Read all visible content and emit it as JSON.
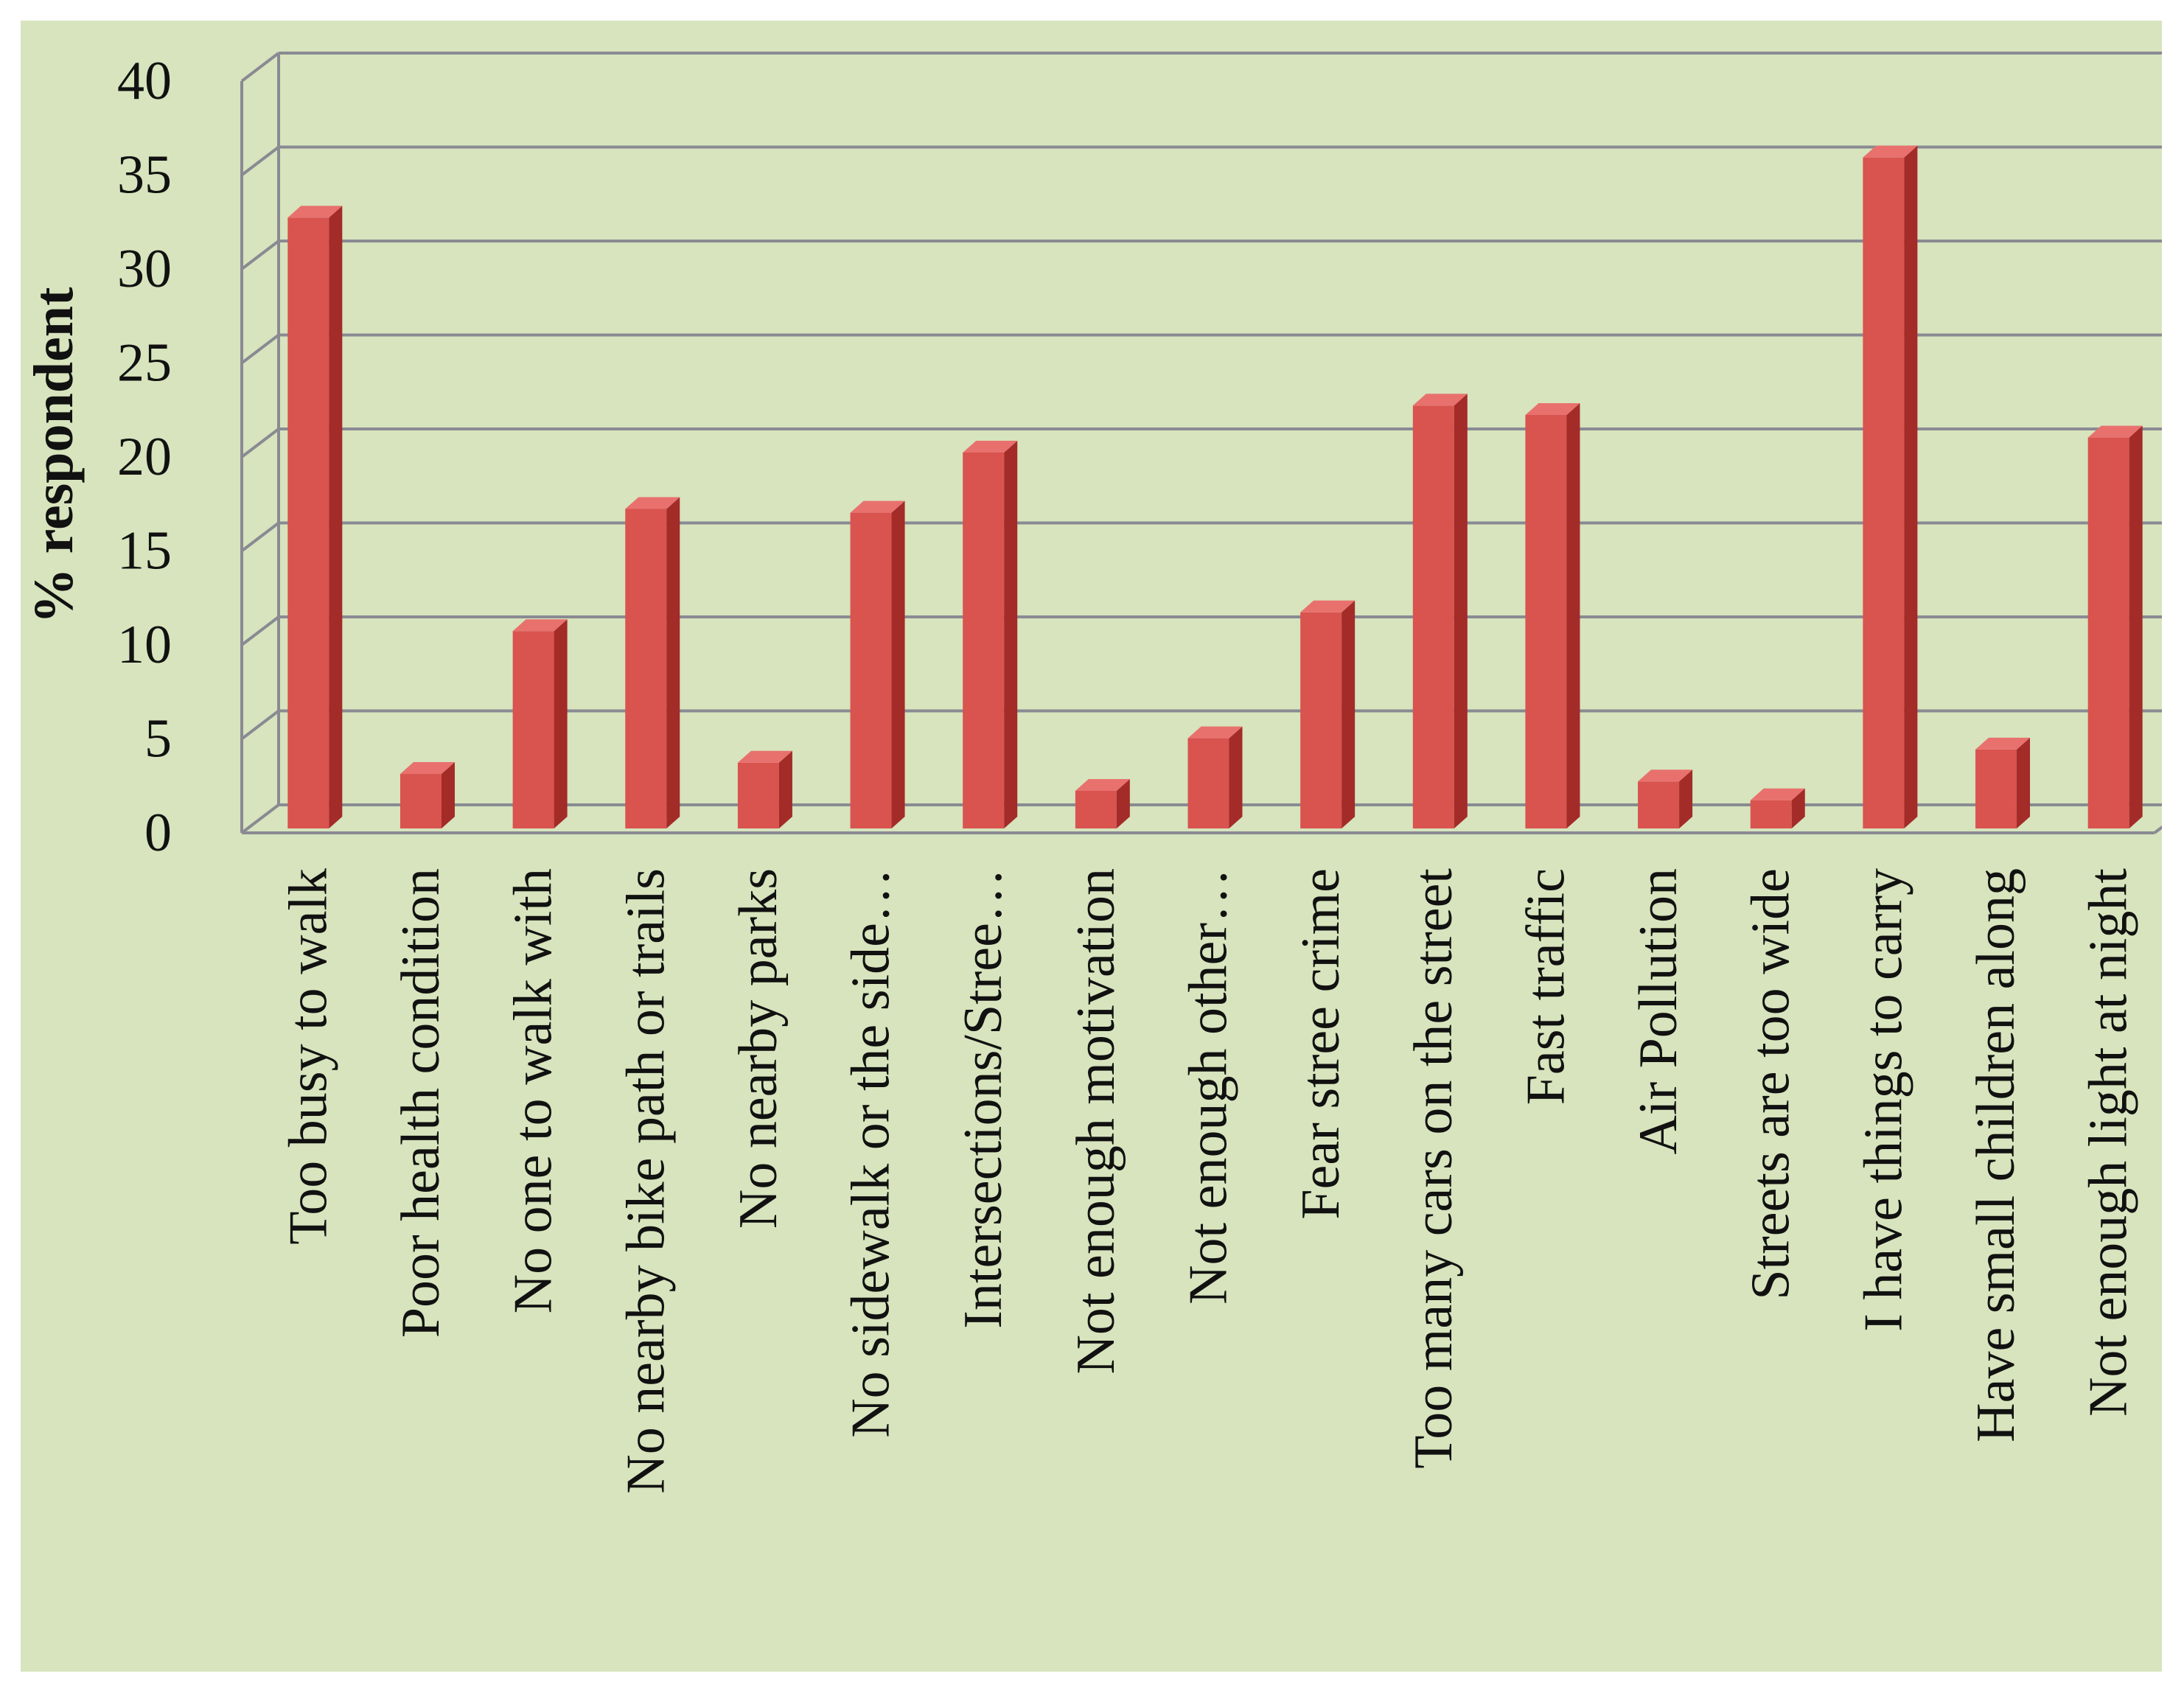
{
  "chart_data": {
    "type": "bar",
    "style": "3d-column",
    "title": "",
    "xlabel": "",
    "ylabel": "% respondent",
    "ylim": [
      0,
      40
    ],
    "yticks": [
      0,
      5,
      10,
      15,
      20,
      25,
      30,
      35,
      40
    ],
    "grid": true,
    "legend": "none",
    "categories": [
      "Too busy to walk",
      "Poor health condition",
      "No one to walk with",
      "No nearby bike path or trails",
      "No nearby parks",
      "No sidewalk or the side…",
      "Intersections/Stree…",
      "Not enough motivation",
      "Not enough other…",
      "Fear stree crime",
      "Too many cars on the street",
      "Fast traffic",
      "Air Pollution",
      "Streets are too wide",
      "I have things to carry",
      "Have small children along",
      "Not enough light at night"
    ],
    "values": [
      32.5,
      2.9,
      10.5,
      17.0,
      3.5,
      16.8,
      20.0,
      2.0,
      4.8,
      11.5,
      22.5,
      22.0,
      2.5,
      1.5,
      35.7,
      4.2,
      20.8
    ],
    "colors": {
      "bar_front": "#d9534f",
      "bar_side": "#a32b28",
      "bar_top": "#e8716e",
      "background": "#d7e4bd",
      "gridline": "#8a8a93"
    }
  }
}
